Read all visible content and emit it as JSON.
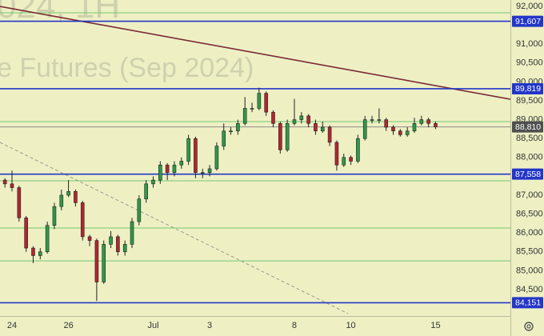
{
  "chart_data": {
    "type": "candlestick",
    "watermark": [
      "024, 1H",
      "e Futures (Sep 2024)"
    ],
    "x": [
      -0.25,
      0,
      0.25,
      0.5,
      0.75,
      1,
      1.25,
      1.5,
      1.75,
      2,
      2.25,
      2.5,
      2.75,
      3,
      3.25,
      3.5,
      3.75,
      4,
      4.25,
      4.5,
      4.75,
      5,
      5.25,
      5.5,
      5.75,
      6,
      6.25,
      6.5,
      6.75,
      7,
      7.25,
      7.5,
      7.75,
      8,
      8.25,
      8.5,
      8.75,
      9,
      9.25,
      9.5,
      9.75,
      10,
      10.25,
      10.5,
      10.75,
      11,
      11.25,
      11.5,
      11.75,
      12,
      12.25,
      12.5,
      12.75,
      13,
      13.25,
      13.5,
      13.75,
      14,
      14.25,
      14.5,
      14.75,
      15
    ],
    "open": [
      87400,
      87300,
      87200,
      86400,
      85600,
      85400,
      85500,
      86200,
      86700,
      87000,
      87100,
      86800,
      85900,
      85800,
      84700,
      85700,
      85900,
      85500,
      85700,
      86300,
      86900,
      87300,
      87400,
      87800,
      87600,
      87800,
      87900,
      88500,
      87600,
      87600,
      87700,
      88300,
      88700,
      88700,
      88900,
      89300,
      89300,
      89700,
      89200,
      88900,
      88200,
      88900,
      89000,
      89100,
      88900,
      88700,
      88800,
      88400,
      87800,
      88000,
      87900,
      88500,
      89000,
      89000,
      89000,
      88800,
      88700,
      88600,
      88700,
      88900,
      89000,
      88900
    ],
    "high": [
      87450,
      87650,
      87250,
      86450,
      85650,
      85600,
      86300,
      86800,
      87150,
      87400,
      87150,
      86850,
      85950,
      85850,
      85800,
      86050,
      85950,
      85800,
      86400,
      87000,
      87400,
      87500,
      87900,
      87850,
      87900,
      88000,
      88600,
      88550,
      87700,
      87800,
      88400,
      88900,
      88800,
      89000,
      89600,
      89450,
      89850,
      89750,
      89250,
      88950,
      89000,
      89550,
      89200,
      89150,
      89000,
      88950,
      88850,
      88450,
      88100,
      88050,
      88600,
      89100,
      89100,
      89300,
      89050,
      88850,
      88750,
      88800,
      89050,
      89100,
      89050,
      88950
    ],
    "low": [
      87200,
      87100,
      86300,
      85500,
      85200,
      85300,
      85450,
      86100,
      86600,
      86950,
      86700,
      85800,
      85650,
      84200,
      84650,
      85600,
      85400,
      85400,
      85600,
      86200,
      86800,
      87200,
      87300,
      87400,
      87500,
      87700,
      87800,
      87450,
      87450,
      87500,
      87650,
      88200,
      88600,
      88600,
      88850,
      89200,
      89250,
      89100,
      88800,
      88100,
      88150,
      88850,
      88900,
      88800,
      88600,
      88650,
      88300,
      87650,
      87750,
      87800,
      87850,
      88450,
      88900,
      88900,
      88700,
      88600,
      88550,
      88550,
      88650,
      88850,
      88800,
      88750
    ],
    "close": [
      87300,
      87200,
      86400,
      85600,
      85400,
      85500,
      86200,
      86700,
      87000,
      87100,
      86800,
      85900,
      85800,
      84700,
      85700,
      85900,
      85500,
      85700,
      86300,
      86900,
      87300,
      87400,
      87800,
      87600,
      87800,
      87900,
      88500,
      87600,
      87600,
      87700,
      88300,
      88700,
      88700,
      88900,
      89300,
      89300,
      89700,
      89200,
      88900,
      88200,
      88900,
      89000,
      89100,
      88900,
      88700,
      88800,
      88400,
      87800,
      88000,
      87900,
      88500,
      89000,
      89000,
      89000,
      88800,
      88700,
      88600,
      88700,
      88900,
      89000,
      88900,
      88810
    ],
    "up_color": "#2e9a48",
    "down_color": "#b3262e",
    "xlim": [
      -0.425,
      17.65
    ],
    "xticks": [
      {
        "value": 0,
        "label": "24"
      },
      {
        "value": 2,
        "label": "26"
      },
      {
        "value": 5,
        "label": "Jul"
      },
      {
        "value": 7,
        "label": "3"
      },
      {
        "value": 10,
        "label": "8"
      },
      {
        "value": 12,
        "label": "10"
      },
      {
        "value": 15,
        "label": "15"
      }
    ],
    "ylim": [
      83800,
      92170
    ],
    "yticks": [
      {
        "value": 92000,
        "label": "92,000"
      },
      {
        "value": 91000,
        "label": "91,000"
      },
      {
        "value": 90500,
        "label": "90,500"
      },
      {
        "value": 90000,
        "label": "90,000"
      },
      {
        "value": 89500,
        "label": "89,500"
      },
      {
        "value": 89000,
        "label": "89,000"
      },
      {
        "value": 88500,
        "label": "88,500"
      },
      {
        "value": 88000,
        "label": "88,000"
      },
      {
        "value": 87000,
        "label": "87,000"
      },
      {
        "value": 86500,
        "label": "86,500"
      },
      {
        "value": 86000,
        "label": "86,000"
      },
      {
        "value": 85500,
        "label": "85,500"
      },
      {
        "value": 85000,
        "label": "85,000"
      },
      {
        "value": 84500,
        "label": "84,500"
      }
    ],
    "levels": {
      "values": [
        91607,
        89819,
        87558,
        84151
      ],
      "value_labels": [
        "91,607",
        "89,819",
        "87,558",
        "84,151"
      ],
      "color": "#2336c8"
    },
    "support_lines": {
      "values": [
        91830,
        88950,
        87380,
        86130,
        85260
      ],
      "color": "#74c774"
    },
    "last_price": {
      "value": 88810,
      "label": "88,810",
      "color": "#8c8c8c",
      "label_color": "#4f4f4f"
    },
    "trend_lines": [
      {
        "x": [
          -0.425,
          17.65
        ],
        "y": [
          92000,
          89542
        ],
        "color": "#7a2a36",
        "dashed": false
      },
      {
        "x": [
          -0.425,
          11.9
        ],
        "y": [
          88398,
          83864
        ],
        "color": "#9a9a8a",
        "dashed": true
      }
    ]
  }
}
